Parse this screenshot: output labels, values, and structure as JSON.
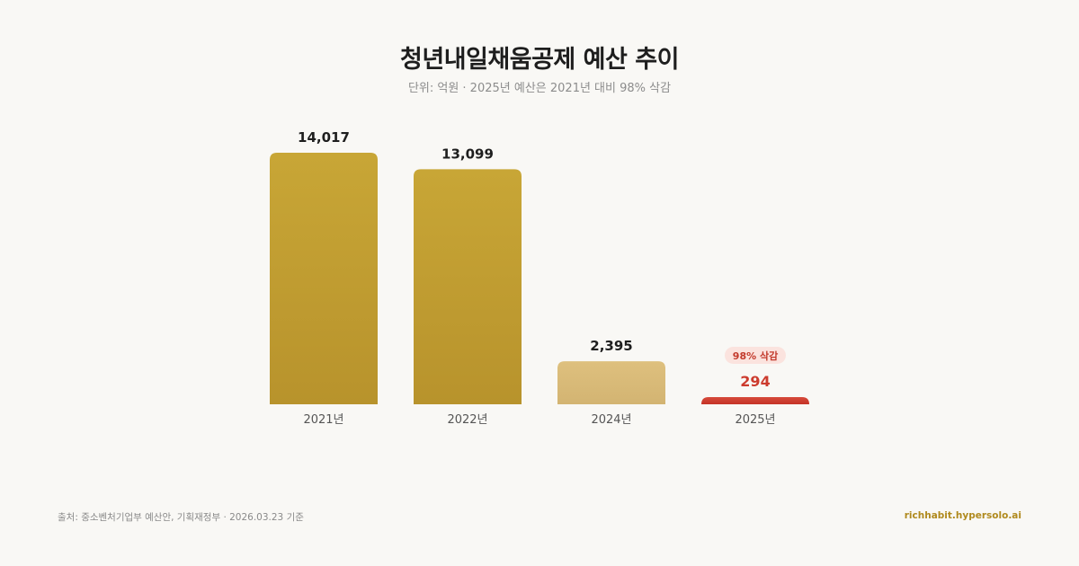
{
  "title": "청년내일채움공제 예산 추이",
  "subtitle": "단위: 억원 · 2025년 예산은 2021년 대비 98% 삭감",
  "chart_data": {
    "type": "bar",
    "categories": [
      "2021년",
      "2022년",
      "2024년",
      "2025년"
    ],
    "values": [
      14017,
      13099,
      2395,
      294
    ],
    "value_labels": [
      "14,017",
      "13,099",
      "2,395",
      "294"
    ],
    "title": "청년내일채움공제 예산 추이",
    "xlabel": "",
    "ylabel": "",
    "ylim": [
      0,
      14017
    ],
    "grid": false,
    "bar_colors": [
      "#c4a233",
      "#c4a233",
      "#d8b86e",
      "#cc3b2e"
    ],
    "annotation": {
      "category": "2025년",
      "text": "98% 삭감"
    }
  },
  "colors": {
    "gold": "#c4a233",
    "light_gold": "#d8b86e",
    "red": "#cc3b2e",
    "brand": "#b08a1e"
  },
  "footer": {
    "source": "출처: 중소벤처기업부 예산안, 기획재정부 · 2026.03.23 기준",
    "brand": "richhabit.hypersolo.ai"
  }
}
